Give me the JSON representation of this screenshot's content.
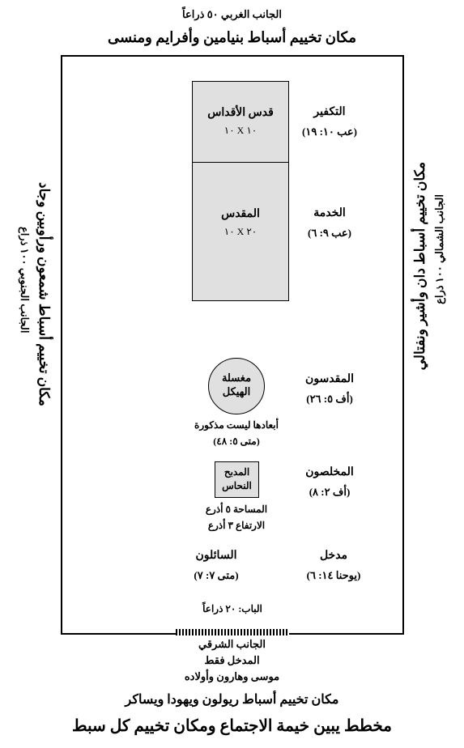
{
  "top": {
    "side_label": "الجانب الغربي ٥٠ ذراعاً",
    "tribes": "مكان تخييم أسباط بنيامين وأفرايم ومنسى"
  },
  "right_side": {
    "axis": "الجانب الشمالي ١٠٠ ذراع",
    "tribes": "مكان تخييم أسباط دان وأشير ونفتالي"
  },
  "left_side": {
    "axis": "الجانب الجنوبي ١٠٠ ذراع",
    "tribes": "مكان تخييم أسباط شمعون ورأوبين وجاد"
  },
  "tabernacle": {
    "holy_of_holies": {
      "title": "قدس الأقداس",
      "dim": "١٠ X ١٠"
    },
    "holy_place": {
      "title": "المقدس",
      "dim": "٢٠ X ١٠"
    }
  },
  "stations": {
    "atonement": {
      "title": "التكفير",
      "ref": "(عب ١٠: ١٩)"
    },
    "service": {
      "title": "الخدمة",
      "ref": "(عب ٩: ٦)"
    },
    "sanctified": {
      "title": "المقدسون",
      "ref": "(أف ٥: ٢٦)"
    },
    "saved": {
      "title": "المخلصون",
      "ref": "(أف ٢: ٨)"
    },
    "entrance": {
      "title": "مدخل",
      "ref": "(يوحنا ١٤: ٦)"
    },
    "seekers": {
      "title": "السائلون",
      "ref": "(متى ٧: ٧)"
    }
  },
  "laver": {
    "line1": "مغسلة",
    "line2": "الهيكل",
    "note": "أبعادها ليست مذكورة",
    "ref": "(متى ٥: ٤٨)"
  },
  "altar": {
    "line1": "المدبح",
    "line2": "النحاس",
    "dim1": "المساحة ٥ أذرع",
    "dim2": "الارتفاع ٣ أذرع"
  },
  "gate": {
    "label": "الباب: ٢٠ ذراعاً"
  },
  "bottom": {
    "side": "الجانب الشرقي",
    "entrance_only": "المدخل فقط",
    "priests": "موسى وهارون وأولاده",
    "tribes": "مكان تخييم أسباط ريولون ويهودا ويساكر",
    "caption": "مخطط يبين خيمة الاجتماع ومكان تخييم كل سبط"
  }
}
